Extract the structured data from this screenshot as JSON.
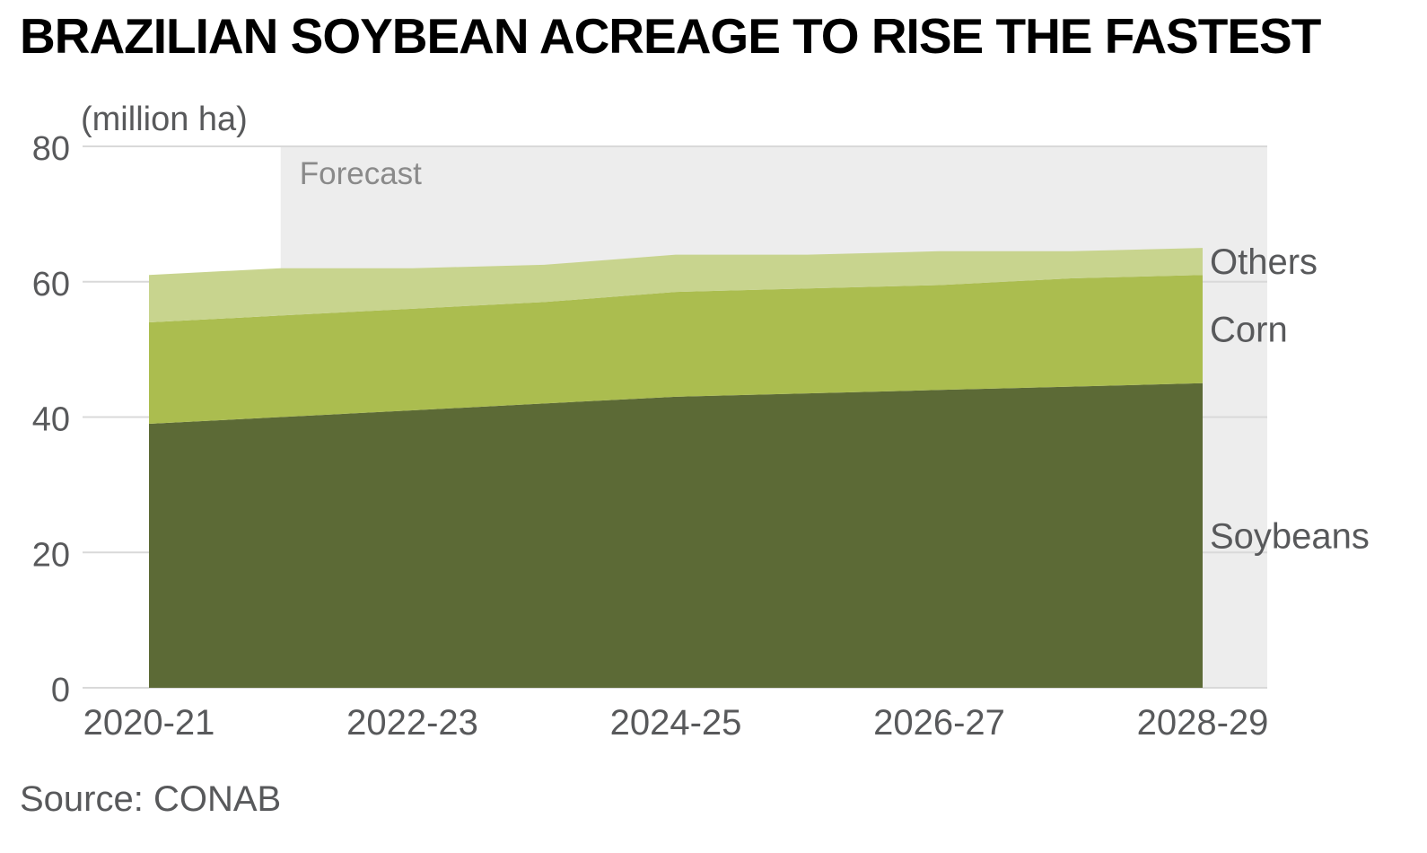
{
  "chart_data": {
    "type": "area",
    "stacked": true,
    "title": "BRAZILIAN SOYBEAN ACREAGE TO RISE THE FASTEST",
    "ylabel": "(million ha)",
    "xlabel": "",
    "source": "Source: CONAB",
    "forecast_label": "Forecast",
    "forecast_start": "2021-22",
    "ylim": [
      0,
      80
    ],
    "yticks": [
      0,
      20,
      40,
      60,
      80
    ],
    "x": [
      "2020-21",
      "2021-22",
      "2022-23",
      "2023-24",
      "2024-25",
      "2025-26",
      "2026-27",
      "2027-28",
      "2028-29"
    ],
    "xtick_labels": [
      "2020-21",
      "2022-23",
      "2024-25",
      "2026-27",
      "2028-29"
    ],
    "series": [
      {
        "name": "Soybeans",
        "color": "#5c6a36",
        "values": [
          39,
          40,
          41,
          42,
          43,
          43.5,
          44,
          44.5,
          45
        ]
      },
      {
        "name": "Corn",
        "color": "#abbd4f",
        "values": [
          15,
          15,
          15,
          15,
          15.5,
          15.5,
          15.5,
          16,
          16
        ]
      },
      {
        "name": "Others",
        "color": "#c8d48e",
        "values": [
          7,
          7,
          6,
          5.5,
          5.5,
          5,
          5,
          4,
          4
        ]
      }
    ],
    "legend_placement": "right, inline labels"
  }
}
